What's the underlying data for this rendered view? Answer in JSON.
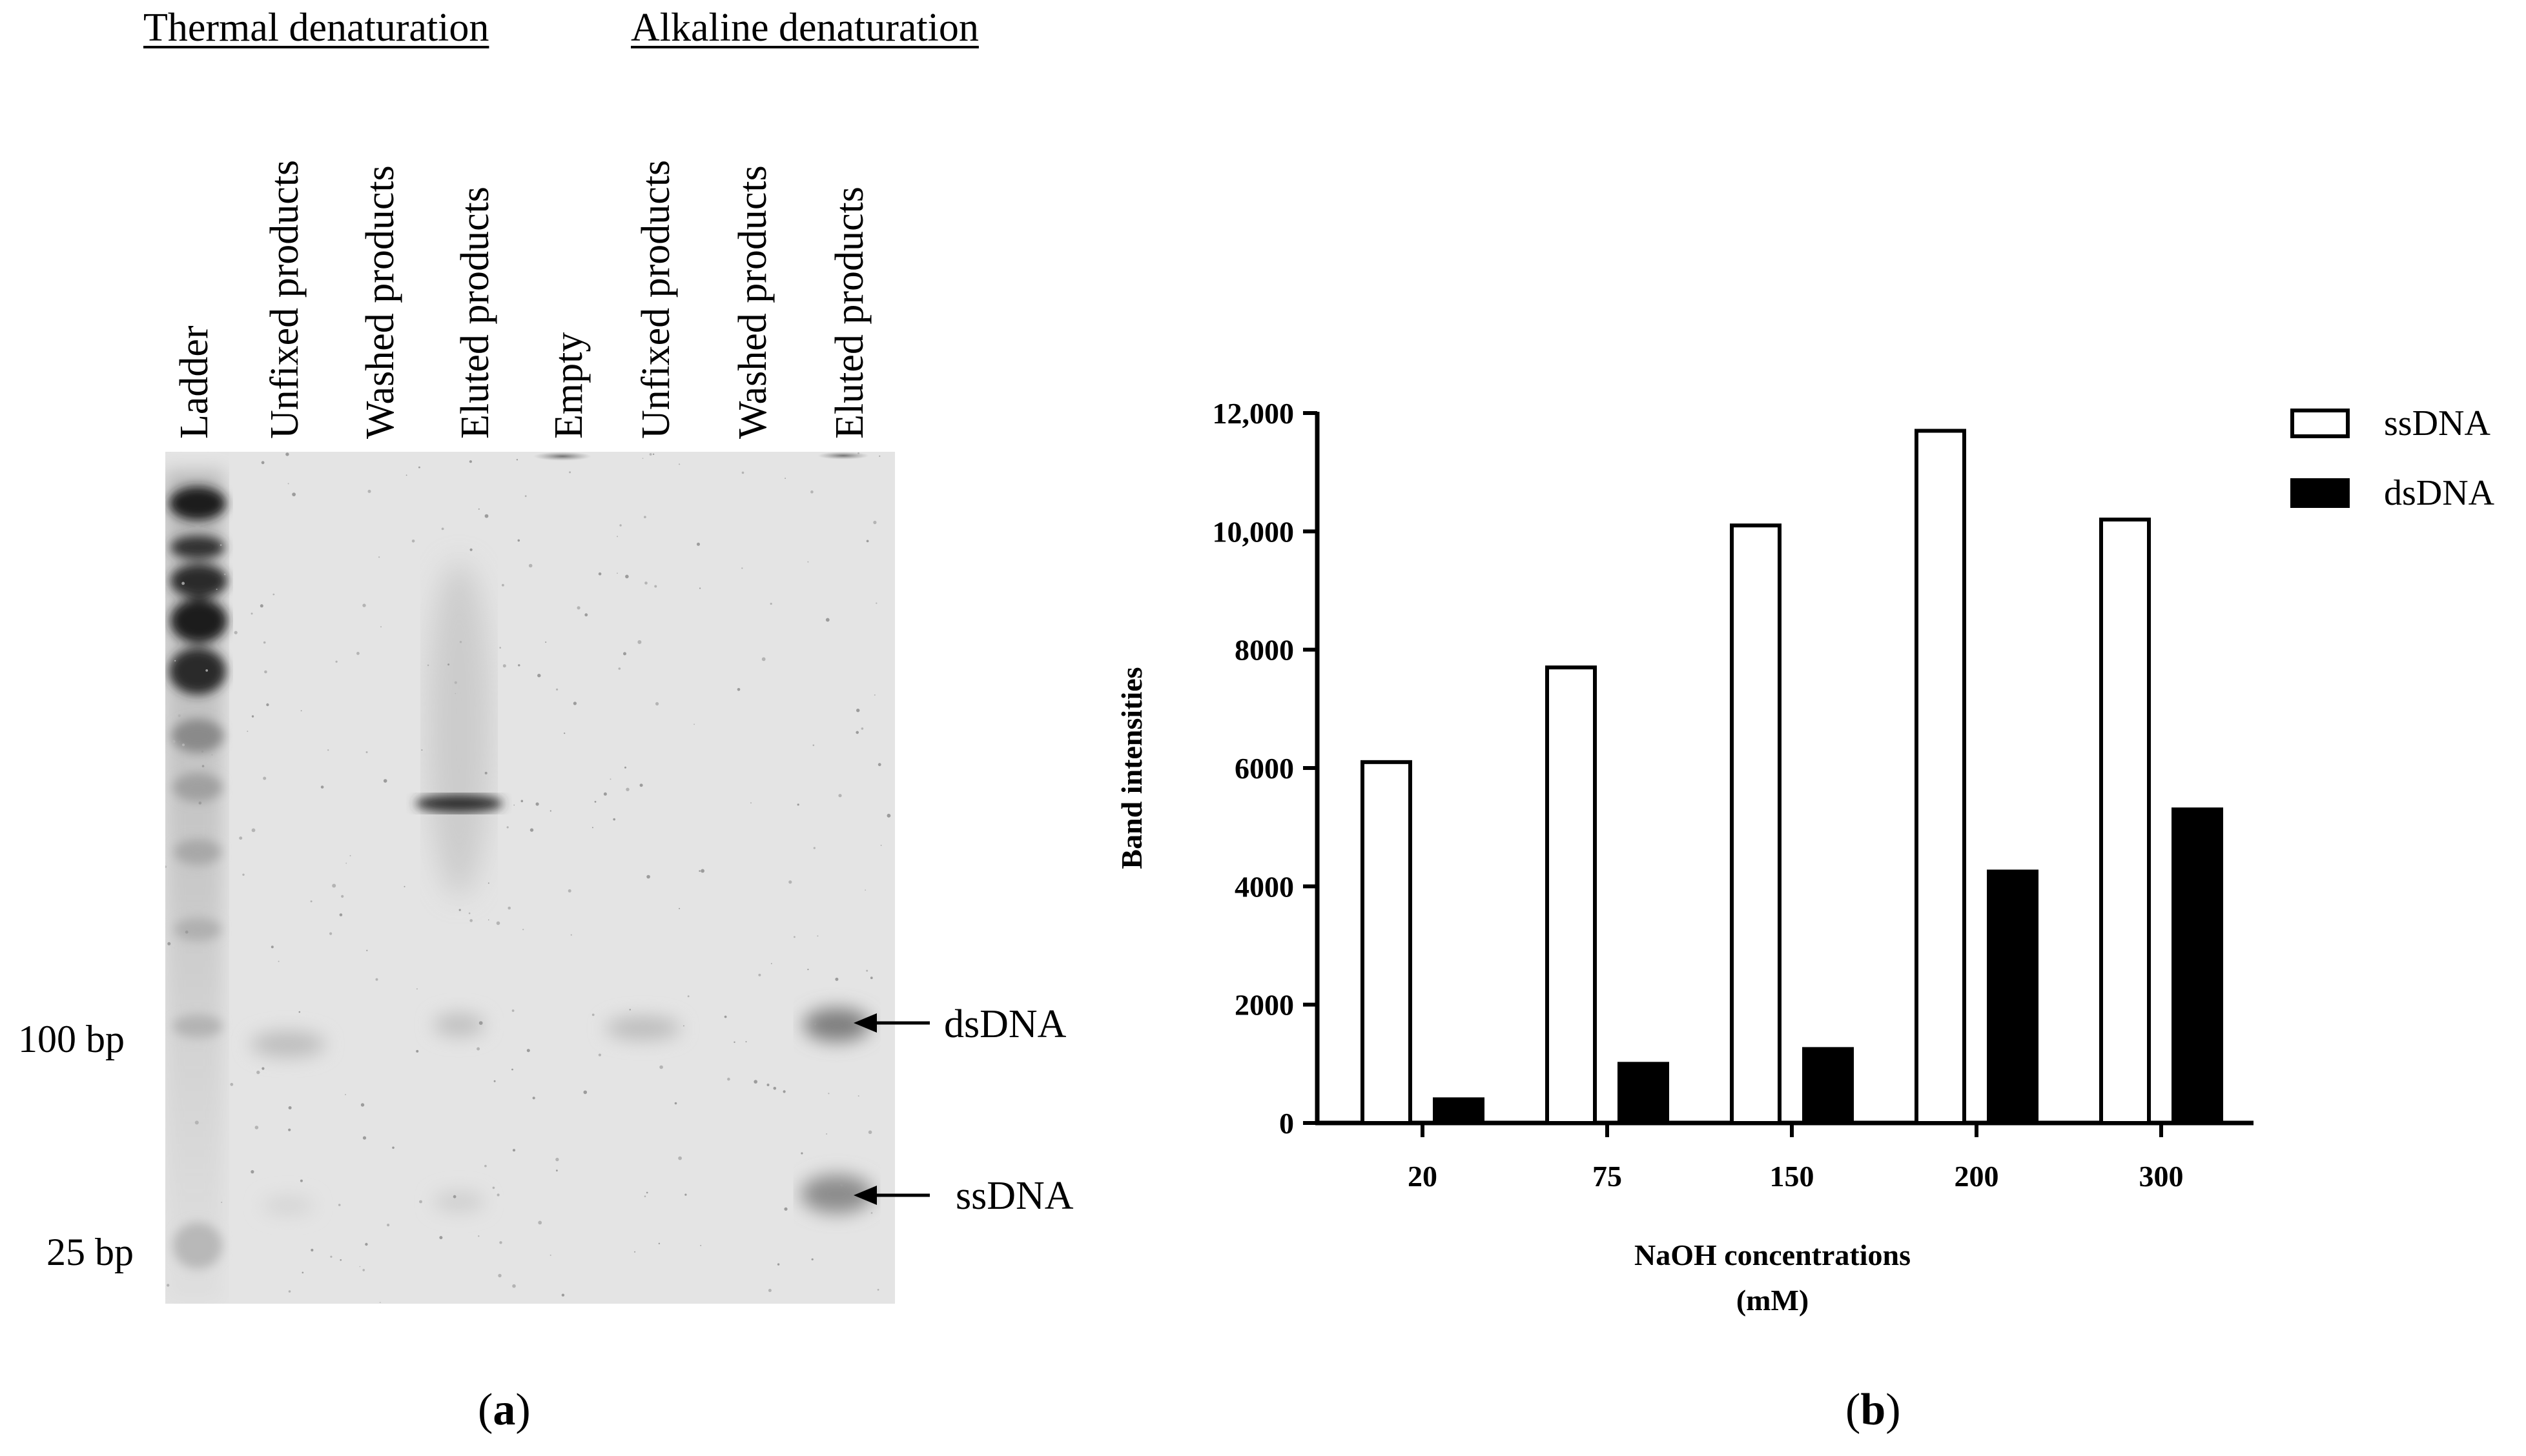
{
  "panel_a": {
    "group_titles": [
      "Thermal denaturation",
      "Alkaline denaturation"
    ],
    "lanes": [
      "Ladder",
      "Unfixed products",
      "Washed products",
      "Eluted products",
      "Empty",
      "Unfixed products",
      "Washed products",
      "Eluted products"
    ],
    "size_markers": [
      "100 bp",
      "25 bp"
    ],
    "arrow_labels": [
      "dsDNA",
      "ssDNA"
    ],
    "panel_label": "a"
  },
  "panel_b": {
    "panel_label": "b"
  },
  "chart_data": {
    "type": "bar",
    "categories": [
      "20",
      "75",
      "150",
      "200",
      "300"
    ],
    "series": [
      {
        "name": "ssDNA",
        "values": [
          6100,
          7700,
          10100,
          11700,
          10200
        ],
        "fill": "#ffffff"
      },
      {
        "name": "dsDNA",
        "values": [
          400,
          1000,
          1250,
          4250,
          5300
        ],
        "fill": "#000000"
      }
    ],
    "xlabel": [
      "NaOH concentrations",
      "(mM)"
    ],
    "ylabel": "Band intensities",
    "ylim": [
      0,
      12000
    ],
    "yticks": [
      0,
      2000,
      4000,
      6000,
      8000,
      10000,
      12000
    ],
    "ytick_labels": [
      "0",
      "2000",
      "4000",
      "6000",
      "8000",
      "10,000",
      "12,000"
    ],
    "legend_position": "top-right",
    "grid": false
  }
}
